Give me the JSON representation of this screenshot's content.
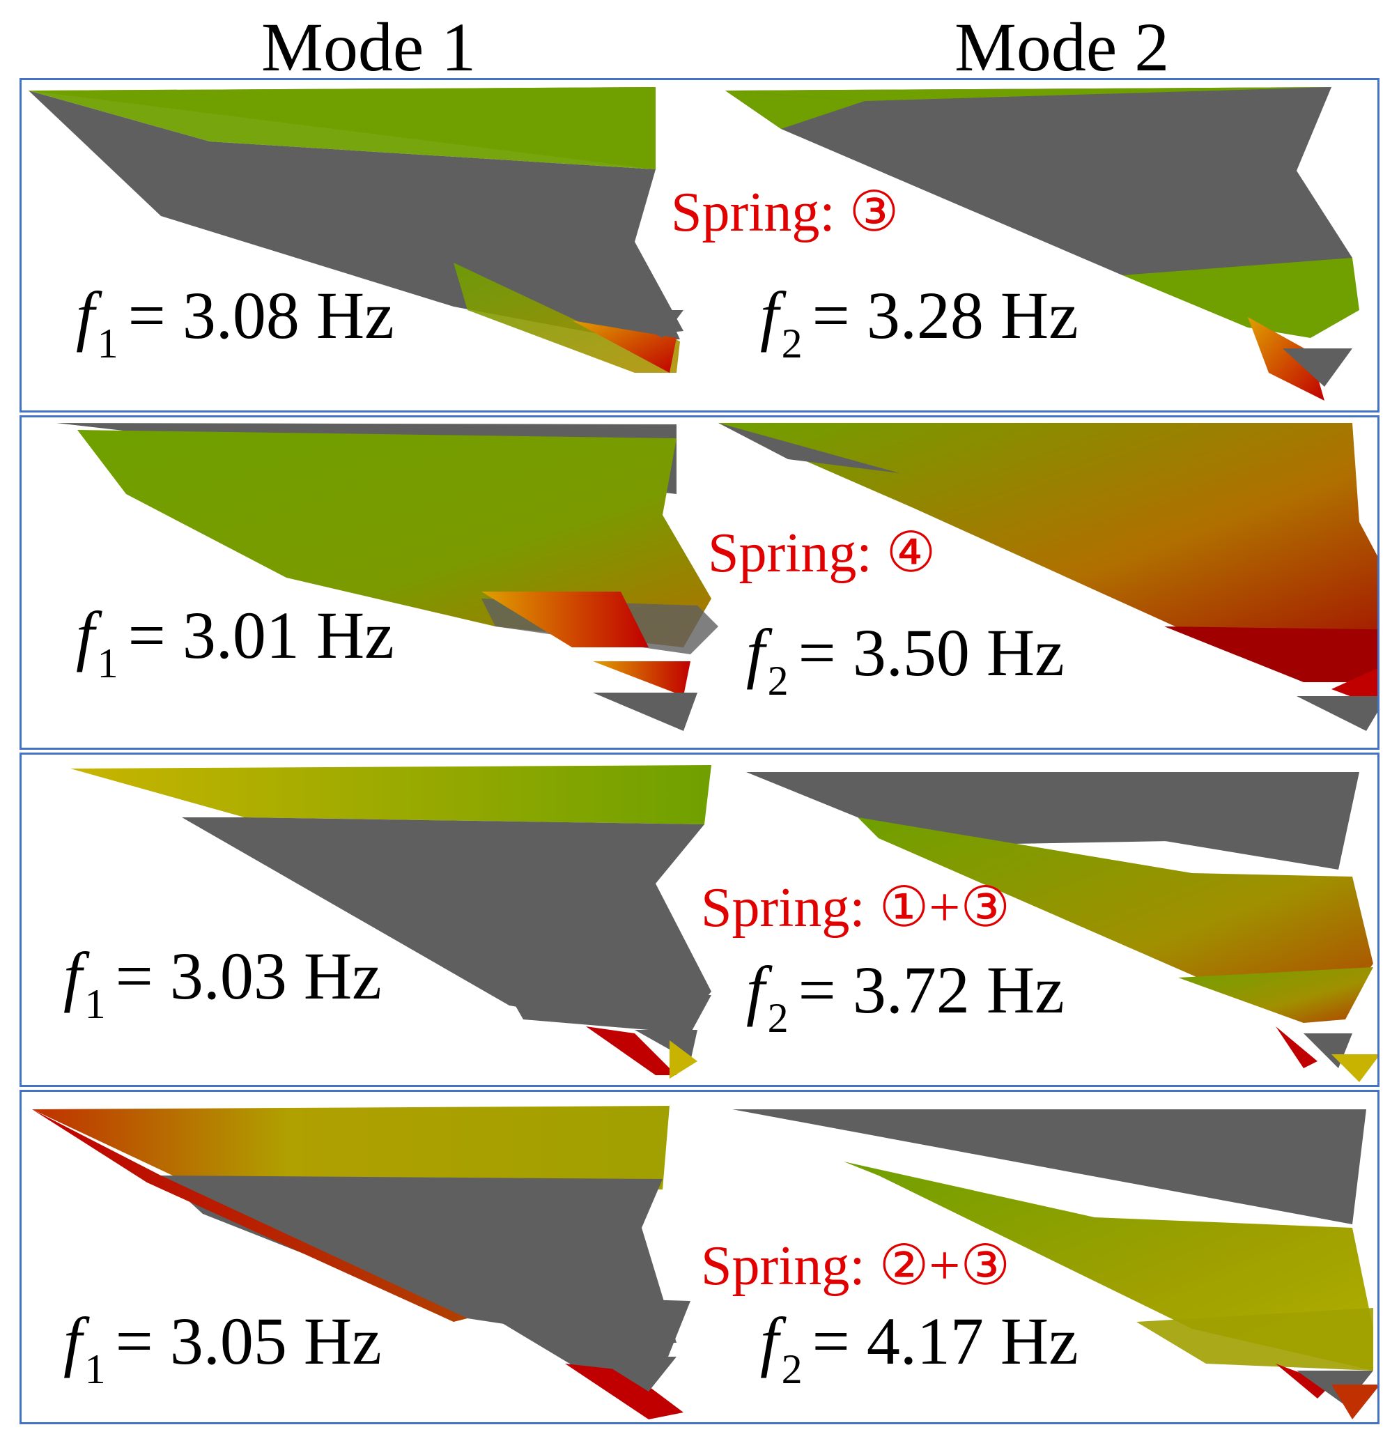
{
  "headers": {
    "mode1": "Mode 1",
    "mode2": "Mode 2"
  },
  "symbols": {
    "f": "f",
    "sub1": "1",
    "sub2": "2"
  },
  "colors": {
    "border": "#4472c4",
    "spring_text": "#e00000",
    "gray": "#5f5f5f",
    "green": "#6fa000",
    "yellow": "#c8b400",
    "red": "#b00000"
  },
  "rows": [
    {
      "spring": "Spring: ③",
      "f1": "= 3.08 Hz",
      "f2": "= 3.28 Hz"
    },
    {
      "spring": "Spring: ④",
      "f1": "= 3.01 Hz",
      "f2": "= 3.50 Hz"
    },
    {
      "spring": "Spring: ①+③",
      "f1": "= 3.03 Hz",
      "f2": "= 3.72 Hz"
    },
    {
      "spring": "Spring: ②+③",
      "f1": "= 3.05 Hz",
      "f2": "= 4.17 Hz"
    }
  ]
}
